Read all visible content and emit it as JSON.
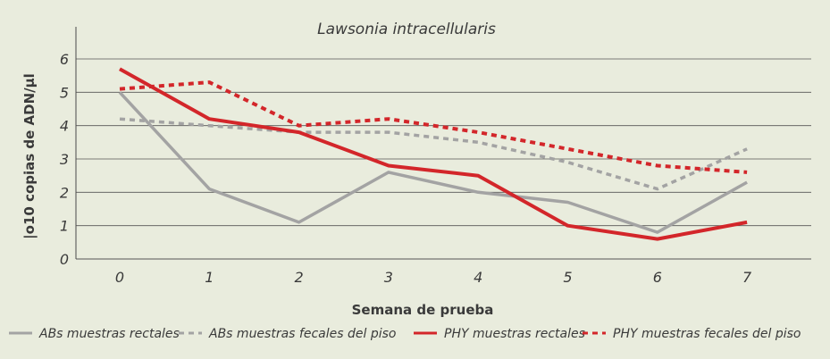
{
  "chart_data": {
    "type": "line",
    "title": "Lawsonia intracellularis",
    "xlabel": "Semana de prueba",
    "ylabel": "|o10 copias de ADN/µl",
    "categories": [
      "0",
      "1",
      "2",
      "3",
      "4",
      "5",
      "6",
      "7"
    ],
    "x": [
      0,
      1,
      2,
      3,
      4,
      5,
      6,
      7
    ],
    "ylim": [
      0,
      6
    ],
    "yticks": [
      "0",
      "1",
      "2",
      "3",
      "4",
      "5",
      "6"
    ],
    "grid": true,
    "legend_position": "bottom",
    "series": [
      {
        "name": "ABs muestras rectales",
        "color": "#a3a3a3",
        "style": "solid",
        "values": [
          5.0,
          2.1,
          1.1,
          2.6,
          2.0,
          1.7,
          0.8,
          2.3
        ]
      },
      {
        "name": "ABs muestras fecales del piso",
        "color": "#a3a3a3",
        "style": "dashed",
        "values": [
          4.2,
          4.0,
          3.8,
          3.8,
          3.5,
          2.9,
          2.1,
          3.3
        ]
      },
      {
        "name": "PHY muestras rectales",
        "color": "#d3262a",
        "style": "solid",
        "values": [
          5.7,
          4.2,
          3.8,
          2.8,
          2.5,
          1.0,
          0.6,
          1.1
        ]
      },
      {
        "name": "PHY muestras fecales del piso",
        "color": "#d3262a",
        "style": "dashed",
        "values": [
          5.1,
          5.3,
          4.0,
          4.2,
          3.8,
          3.3,
          2.8,
          2.6
        ]
      }
    ]
  }
}
